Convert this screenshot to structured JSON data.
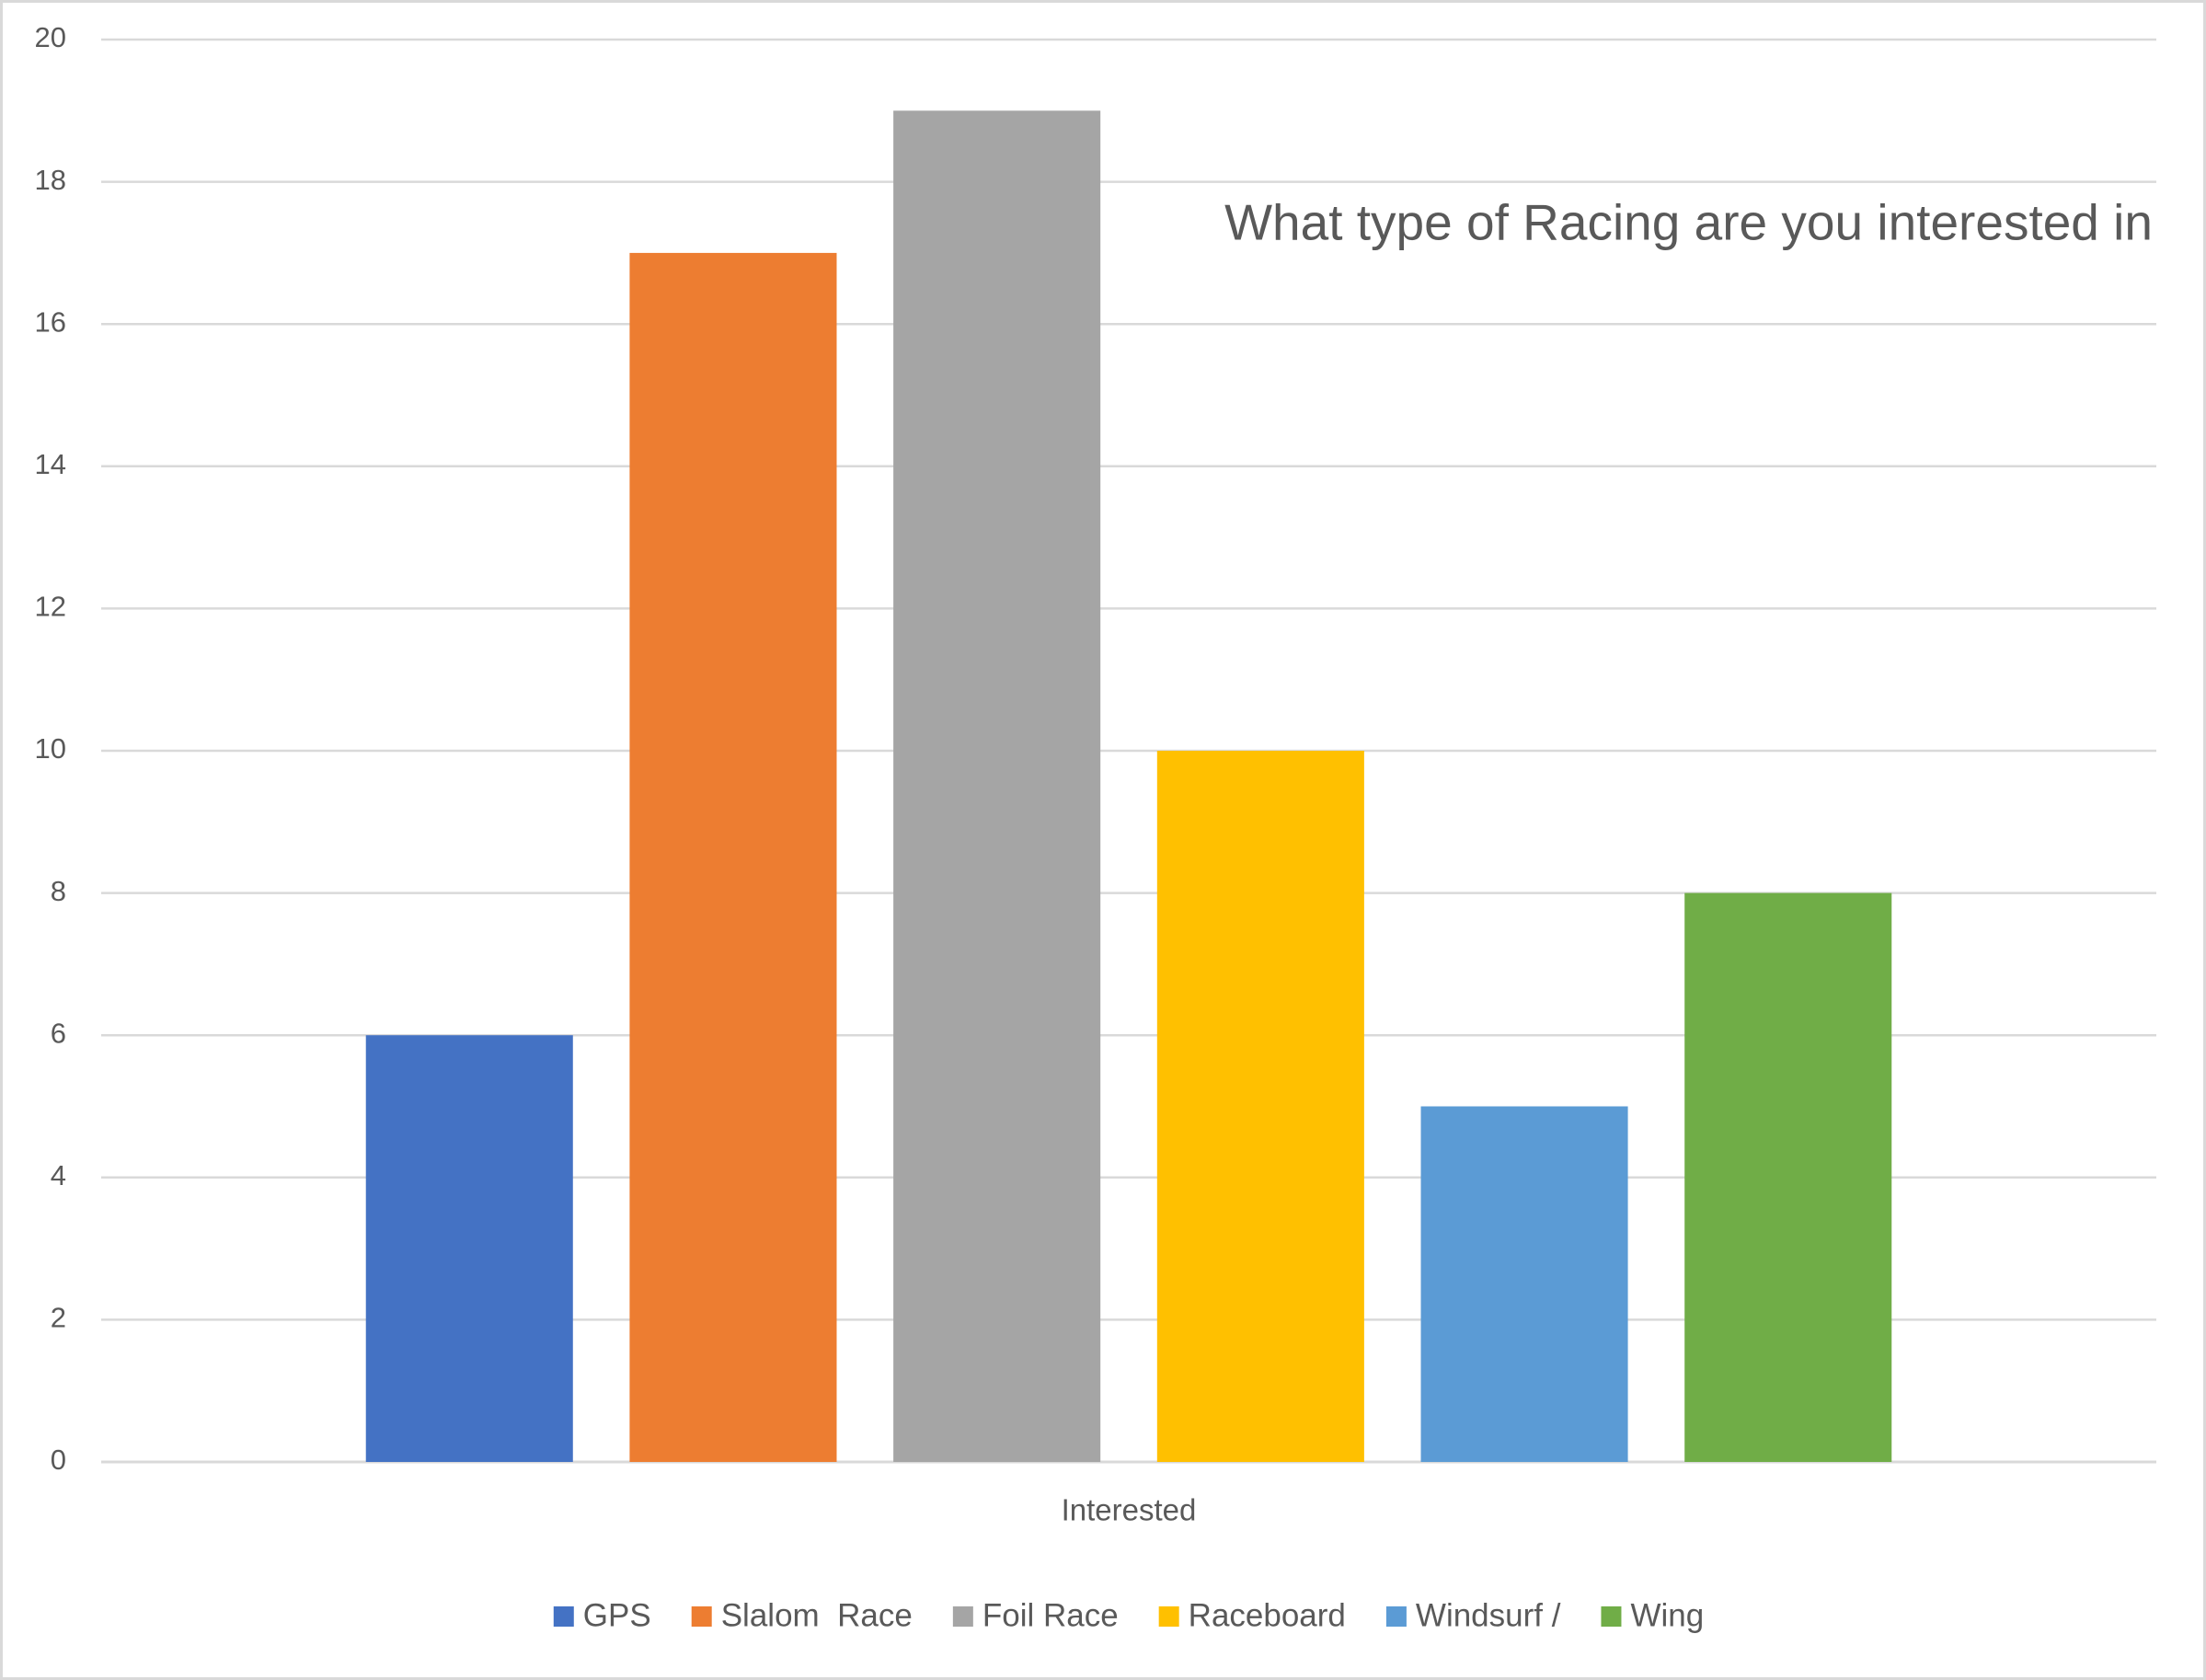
{
  "chart_data": {
    "type": "bar",
    "title": "What type of Racing are you interested in",
    "categories": [
      "Interested"
    ],
    "series": [
      {
        "name": "GPS",
        "color": "#4472c4",
        "values": [
          6
        ]
      },
      {
        "name": "Slalom  Race",
        "color": "#ed7d31",
        "values": [
          17
        ]
      },
      {
        "name": "Foil Race",
        "color": "#a5a5a5",
        "values": [
          19
        ]
      },
      {
        "name": "Raceboard",
        "color": "#ffc000",
        "values": [
          10
        ]
      },
      {
        "name": "Windsurf /",
        "color": "#5b9bd5",
        "values": [
          5
        ]
      },
      {
        "name": "Wing",
        "color": "#70ad47",
        "values": [
          8
        ]
      }
    ],
    "ylim": [
      0,
      20
    ],
    "yticks": [
      0,
      2,
      4,
      6,
      8,
      10,
      12,
      14,
      16,
      18,
      20
    ],
    "grid": true,
    "legend": "bottom"
  }
}
